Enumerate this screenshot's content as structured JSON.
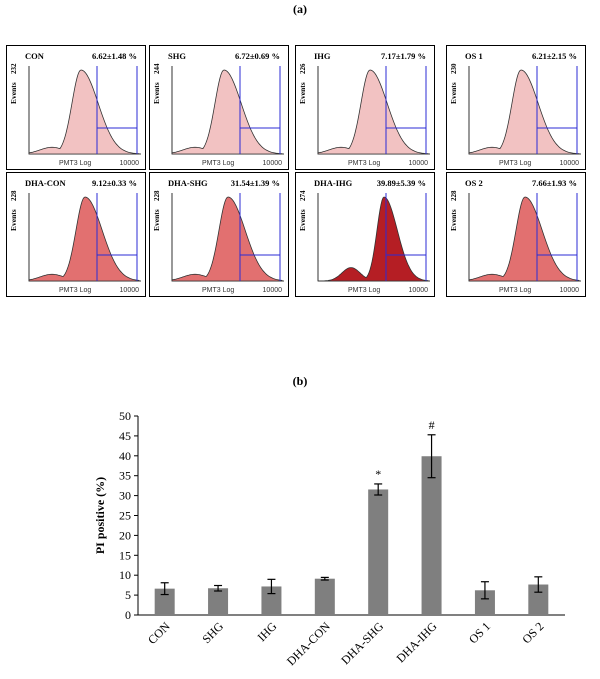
{
  "figure": {
    "panel_a_label": "(a)",
    "panel_b_label": "(b)"
  },
  "histograms": [
    {
      "name": "CON",
      "pct": "6.62±1.48 %",
      "ymax": "232",
      "ylabel": "Events",
      "xlabel": "PMT3 Log",
      "xmax": "10000",
      "fill": "#f2c2c2"
    },
    {
      "name": "SHG",
      "pct": "6.72±0.69 %",
      "ymax": "244",
      "ylabel": "Events",
      "xlabel": "PMT3 Log",
      "xmax": "10000",
      "fill": "#f2c2c2"
    },
    {
      "name": "IHG",
      "pct": "7.17±1.79 %",
      "ymax": "226",
      "ylabel": "Events",
      "xlabel": "PMT3 Log",
      "xmax": "10000",
      "fill": "#f2c2c2"
    },
    {
      "name": "OS 1",
      "pct": "6.21±2.15 %",
      "ymax": "230",
      "ylabel": "Events",
      "xlabel": "PMT3 Log",
      "xmax": "10000",
      "fill": "#f2c2c2"
    },
    {
      "name": "DHA-CON",
      "pct": "9.12±0.33 %",
      "ymax": "228",
      "ylabel": "Events",
      "xlabel": "PMT3 Log",
      "xmax": "10000",
      "fill": "#e27070"
    },
    {
      "name": "DHA-SHG",
      "pct": "31.54±1.39 %",
      "ymax": "228",
      "ylabel": "Events",
      "xlabel": "PMT3 Log",
      "xmax": "10000",
      "fill": "#e27070"
    },
    {
      "name": "DHA-IHG",
      "pct": "39.89±5.39 %",
      "ymax": "274",
      "ylabel": "Events",
      "xlabel": "PMT3 Log",
      "xmax": "10000",
      "fill": "#b51e24"
    },
    {
      "name": "OS 2",
      "pct": "7.66±1.93 %",
      "ymax": "228",
      "ylabel": "Events",
      "xlabel": "PMT3 Log",
      "xmax": "10000",
      "fill": "#e27070"
    }
  ],
  "chart_data": {
    "type": "bar",
    "categories": [
      "CON",
      "SHG",
      "IHG",
      "DHA-CON",
      "DHA-SHG",
      "DHA-IHG",
      "OS 1",
      "OS 2"
    ],
    "values": [
      6.62,
      6.72,
      7.17,
      9.12,
      31.54,
      39.89,
      6.21,
      7.66
    ],
    "errors": [
      1.48,
      0.69,
      1.79,
      0.33,
      1.39,
      5.39,
      2.15,
      1.93
    ],
    "annotations": [
      "",
      "",
      "",
      "",
      "*",
      "#",
      "",
      ""
    ],
    "ylabel": "PI positive (%)",
    "xlabel": "",
    "ylim": [
      0,
      50
    ],
    "yticks": [
      0,
      5,
      10,
      15,
      20,
      25,
      30,
      35,
      40,
      45,
      50
    ],
    "bar_color": "#7f7f7f",
    "grid": false
  }
}
